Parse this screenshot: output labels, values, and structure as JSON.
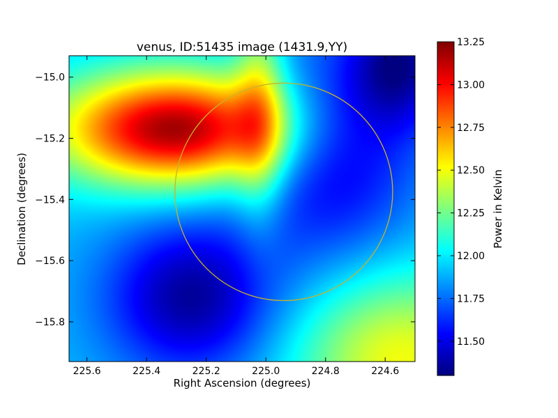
{
  "chart_data": {
    "type": "heatmap",
    "title": "venus, ID:51435 image (1431.9,YY)",
    "xlabel": "Right Ascension (degrees)",
    "ylabel": "Declination (degrees)",
    "xlim": [
      225.66,
      224.5
    ],
    "ylim": [
      -15.93,
      -14.93
    ],
    "x_ticks": [
      225.6,
      225.4,
      225.2,
      225.0,
      224.8,
      224.6
    ],
    "x_tick_labels": [
      "225.6",
      "225.4",
      "225.2",
      "225.0",
      "224.8",
      "224.6"
    ],
    "y_ticks": [
      -15.0,
      -15.2,
      -15.4,
      -15.6,
      -15.8
    ],
    "y_tick_labels": [
      "−15.0",
      "−15.2",
      "−15.4",
      "−15.6",
      "−15.8"
    ],
    "colorbar": {
      "label": "Power in Kelvin",
      "range": [
        11.3,
        13.25
      ],
      "ticks": [
        11.5,
        11.75,
        12.0,
        12.25,
        12.5,
        12.75,
        13.0,
        13.25
      ],
      "tick_labels": [
        "11.50",
        "11.75",
        "12.00",
        "12.25",
        "12.50",
        "12.75",
        "13.00",
        "13.25"
      ],
      "colormap": "jet"
    },
    "field": {
      "base_level": 11.9,
      "components": [
        {
          "kind": "peak",
          "ra": 225.3,
          "dec": -15.17,
          "amplitude": 1.3,
          "sigma_ra": 0.28,
          "sigma_dec": 0.13
        },
        {
          "kind": "trough",
          "ra": 225.25,
          "dec": -15.72,
          "amplitude": -0.55,
          "sigma_ra": 0.2,
          "sigma_dec": 0.18
        },
        {
          "kind": "trough",
          "ra": 224.78,
          "dec": -15.25,
          "amplitude": -0.45,
          "sigma_ra": 0.2,
          "sigma_dec": 0.25
        },
        {
          "kind": "trough",
          "ra": 224.55,
          "dec": -14.95,
          "amplitude": -0.5,
          "sigma_ra": 0.12,
          "sigma_dec": 0.15
        },
        {
          "kind": "peak",
          "ra": 224.55,
          "dec": -15.92,
          "amplitude": 0.6,
          "sigma_ra": 0.25,
          "sigma_dec": 0.2
        },
        {
          "kind": "peak",
          "ra": 225.02,
          "dec": -15.1,
          "amplitude": 0.45,
          "sigma_ra": 0.06,
          "sigma_dec": 0.25
        }
      ]
    },
    "circle": {
      "center_ra": 224.94,
      "center_dec": -15.375,
      "radius_deg": 0.365,
      "color": "#c8b428"
    },
    "grid": false
  }
}
